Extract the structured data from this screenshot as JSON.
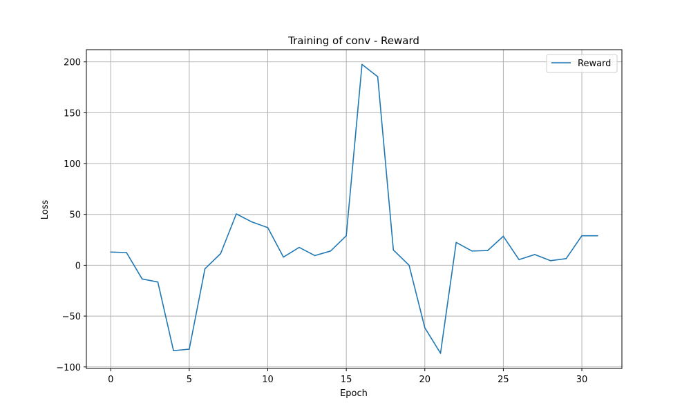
{
  "chart_data": {
    "type": "line",
    "title": "Training of conv - Reward",
    "xlabel": "Epoch",
    "ylabel": "Loss",
    "xlim": [
      -1.55,
      32.55
    ],
    "ylim": [
      -101.5,
      212.0
    ],
    "xticks": [
      0,
      5,
      10,
      15,
      20,
      25,
      30
    ],
    "yticks": [
      -100,
      -50,
      0,
      50,
      100,
      150,
      200
    ],
    "ytick_labels": [
      "−100",
      "−50",
      "0",
      "50",
      "100",
      "150",
      "200"
    ],
    "grid": true,
    "legend_position": "upper-right",
    "x": [
      0,
      1,
      2,
      3,
      4,
      5,
      6,
      7,
      8,
      9,
      10,
      11,
      12,
      13,
      14,
      15,
      16,
      17,
      18,
      19,
      20,
      21,
      22,
      23,
      24,
      25,
      26,
      27,
      28,
      29,
      30,
      31
    ],
    "series": [
      {
        "name": "Reward",
        "color": "#1f77b4",
        "values": [
          13.0,
          12.5,
          -13.5,
          -16.5,
          -84.0,
          -82.5,
          -3.5,
          11.5,
          50.5,
          42.5,
          37.0,
          8.0,
          17.5,
          9.5,
          14.0,
          29.0,
          197.5,
          185.5,
          15.0,
          0.0,
          -61.5,
          -86.5,
          22.5,
          14.0,
          14.5,
          28.5,
          5.5,
          10.5,
          4.5,
          6.5,
          29.0,
          29.0
        ]
      }
    ]
  }
}
